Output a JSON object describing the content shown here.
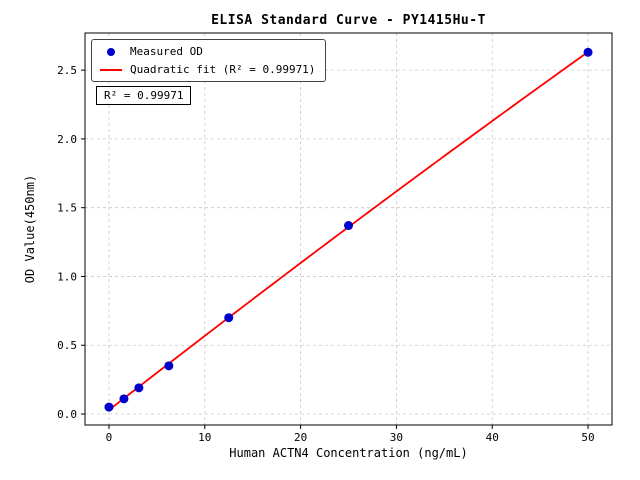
{
  "chart_data": {
    "type": "scatter",
    "title": "ELISA Standard Curve - PY1415Hu-T",
    "xlabel": "Human ACTN4 Concentration (ng/mL)",
    "ylabel": "OD Value(450nm)",
    "xlim": [
      -2.5,
      52.5
    ],
    "ylim": [
      -0.08,
      2.77
    ],
    "xticks": [
      0,
      10,
      20,
      30,
      40,
      50
    ],
    "xtick_labels": [
      "0",
      "10",
      "20",
      "30",
      "40",
      "50"
    ],
    "yticks": [
      0.0,
      0.5,
      1.0,
      1.5,
      2.0,
      2.5
    ],
    "ytick_labels": [
      "0.0",
      "0.5",
      "1.0",
      "1.5",
      "2.0",
      "2.5"
    ],
    "grid": true,
    "grid_style": "dashed",
    "annotation": "R² = 0.99971",
    "legend": {
      "position": "upper-left",
      "entries": [
        {
          "label": "Measured OD",
          "marker": "dot",
          "color": "#0000cd"
        },
        {
          "label": "Quadratic fit (R² = 0.99971)",
          "marker": "line",
          "color": "#ff0000"
        }
      ]
    },
    "series": [
      {
        "name": "Measured OD",
        "type": "scatter",
        "color": "#0000cd",
        "points": [
          [
            0,
            0.05
          ],
          [
            1.5625,
            0.11
          ],
          [
            3.125,
            0.19
          ],
          [
            6.25,
            0.35
          ],
          [
            12.5,
            0.7
          ],
          [
            25,
            1.37
          ],
          [
            50,
            2.63
          ]
        ]
      },
      {
        "name": "Quadratic fit",
        "type": "quadratic-fit",
        "color": "#ff0000",
        "r_squared": 0.99971
      }
    ]
  }
}
